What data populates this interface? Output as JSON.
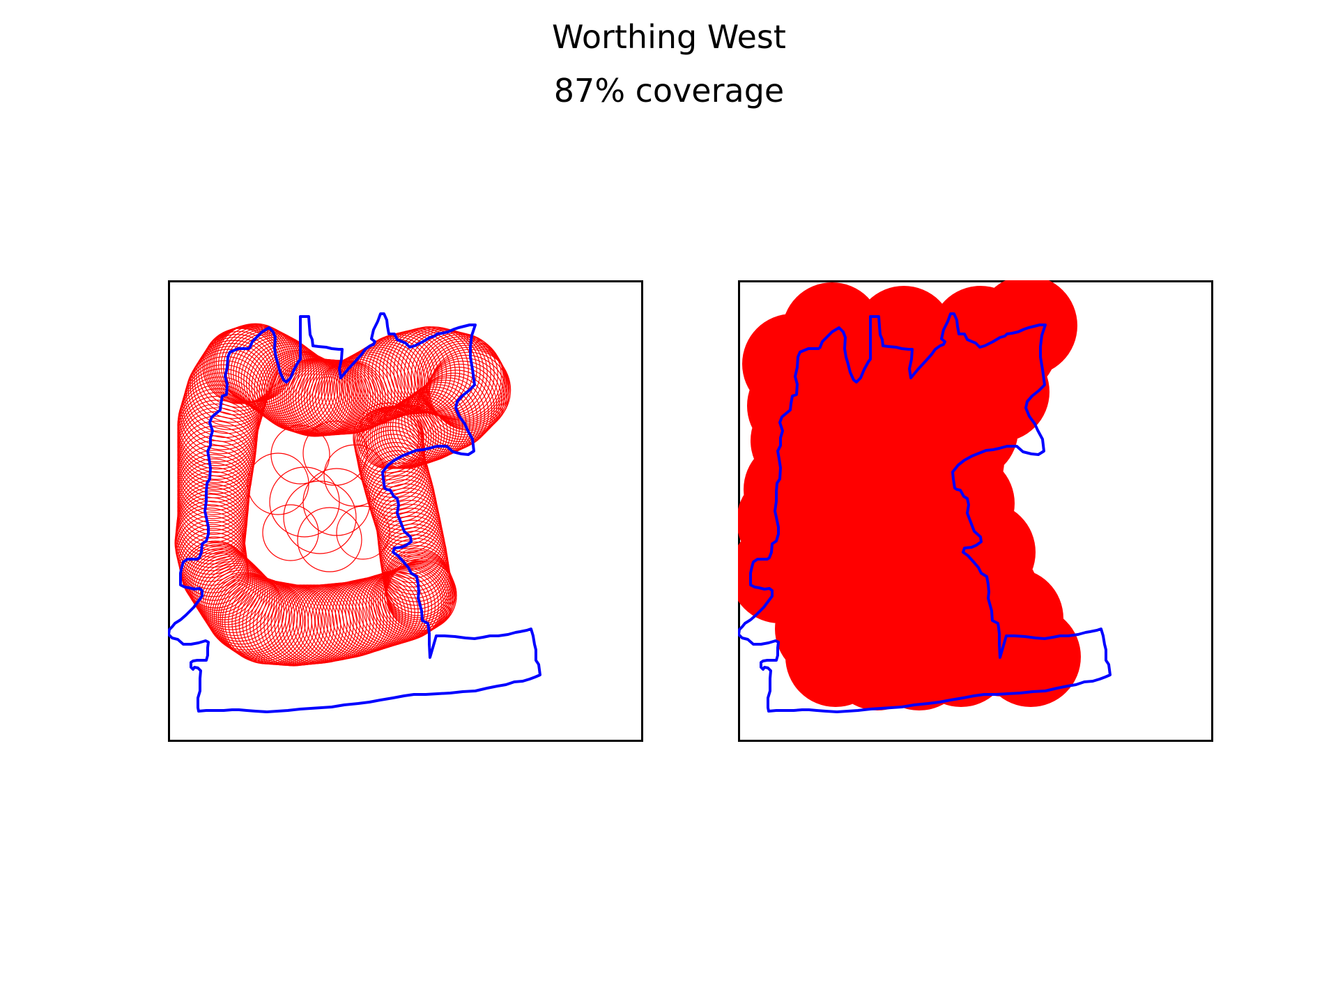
{
  "figure": {
    "title": "Worthing West",
    "subtitle": "87% coverage"
  },
  "colors": {
    "boundary": "#0000ff",
    "circles": "#ff0000",
    "frame": "#000000",
    "background": "#ffffff"
  },
  "panels": [
    {
      "name": "circle-outlines",
      "style": "outline"
    },
    {
      "name": "coverage-filled",
      "style": "filled"
    }
  ]
}
